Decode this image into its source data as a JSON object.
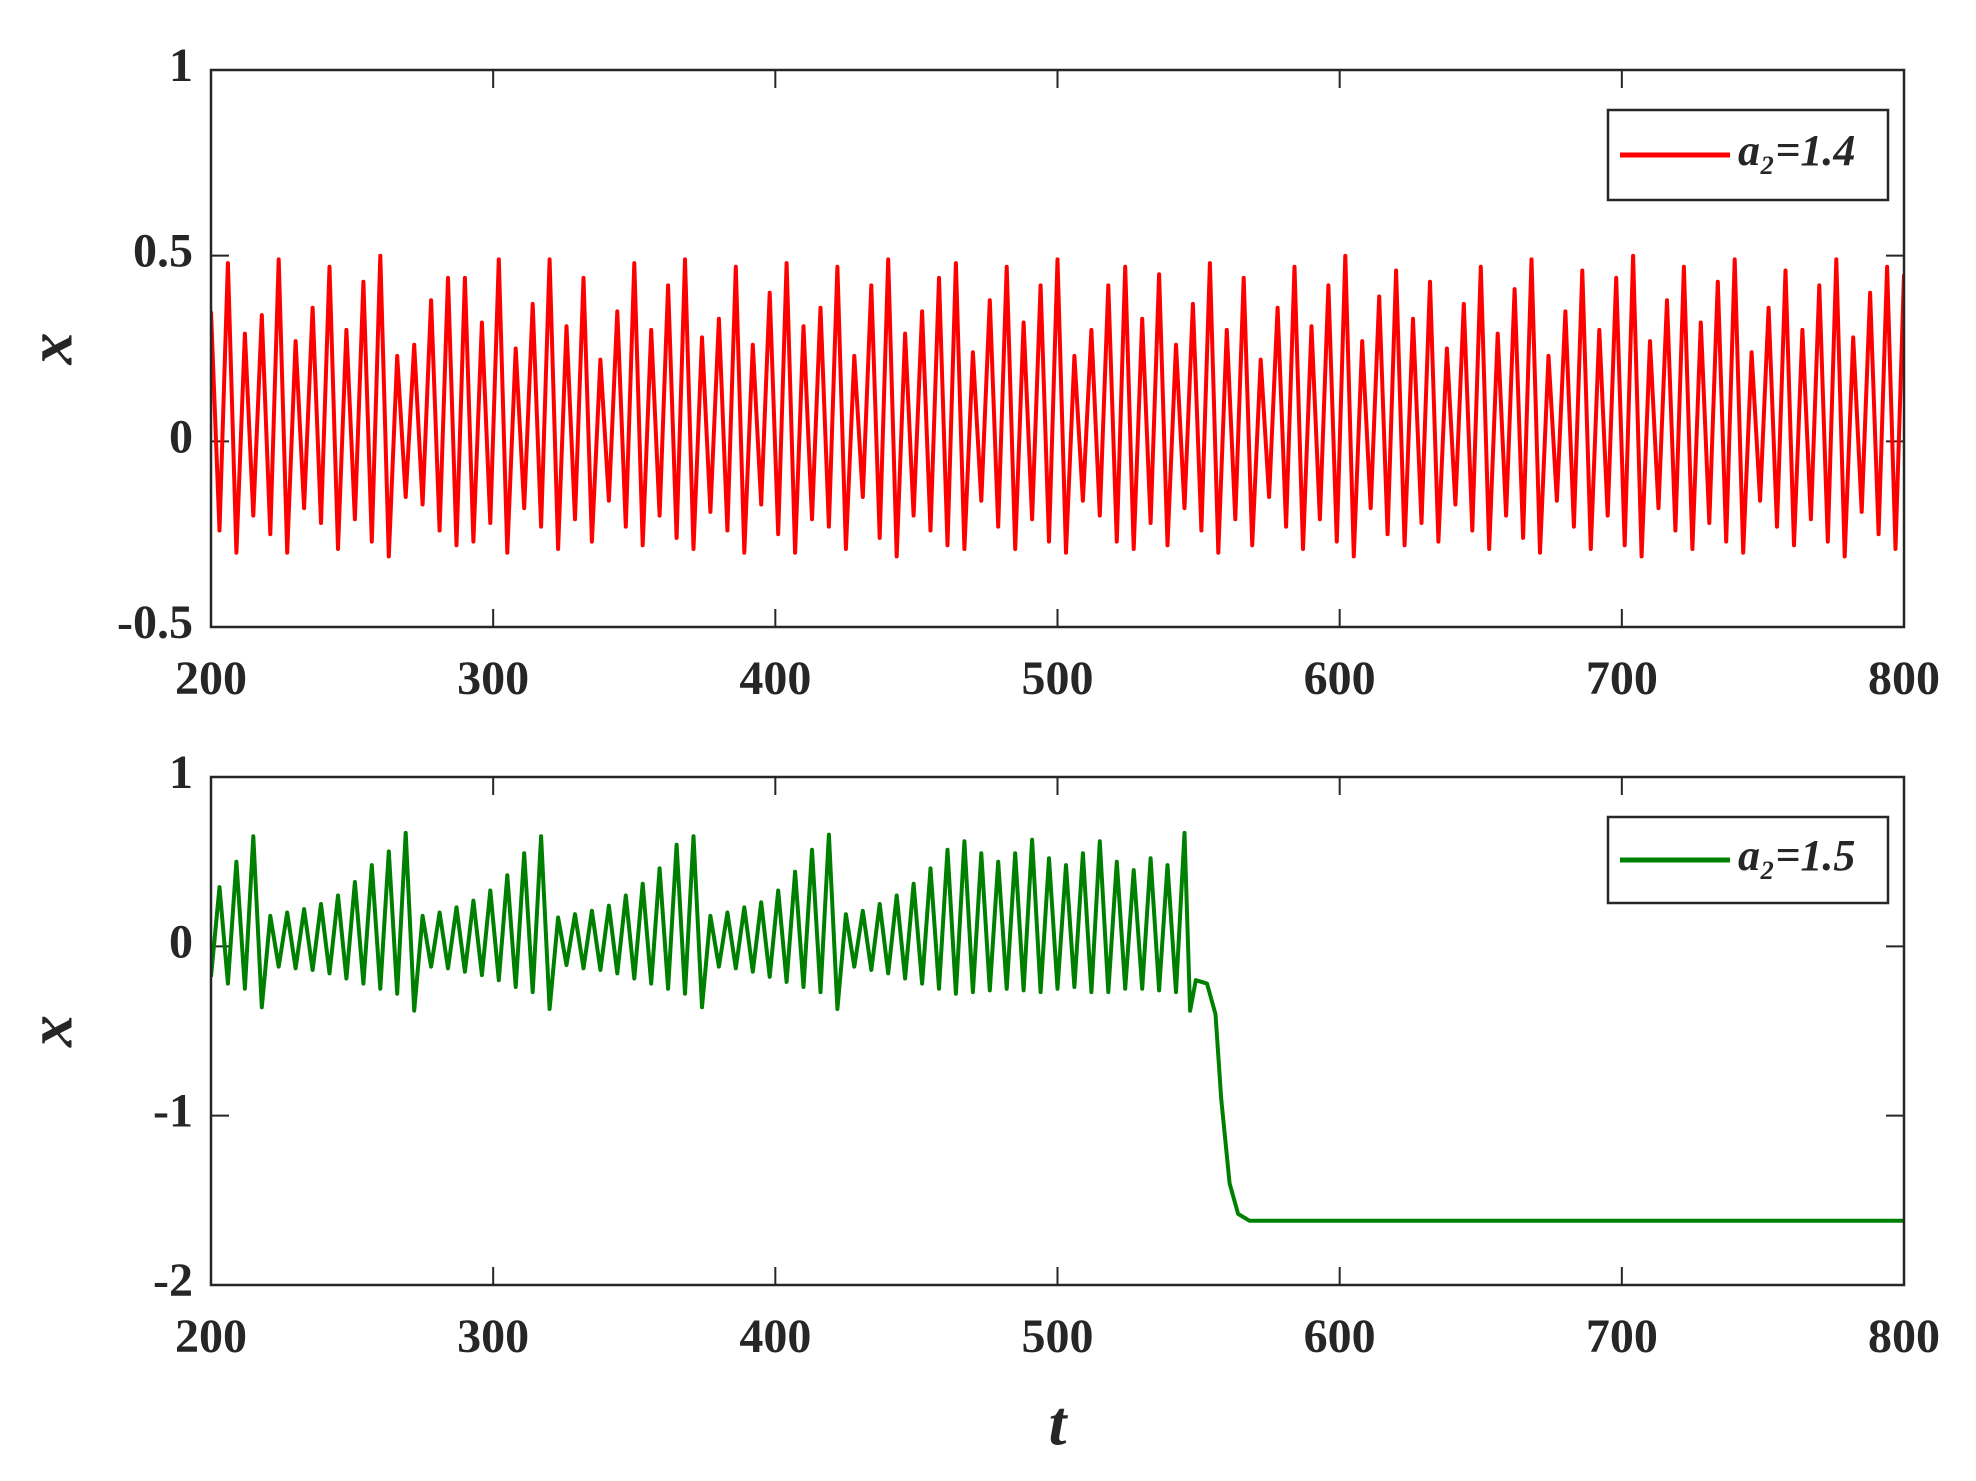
{
  "chart_data": [
    {
      "type": "line",
      "ylabel": "x",
      "x": [
        200,
        203,
        206,
        209,
        212,
        215,
        218,
        221,
        224,
        227,
        230,
        233,
        236,
        239,
        242,
        245,
        248,
        251,
        254,
        257,
        260,
        263,
        266,
        269,
        272,
        275,
        278,
        281,
        284,
        287,
        290,
        293,
        296,
        299,
        302,
        305,
        308,
        311,
        314,
        317,
        320,
        323,
        326,
        329,
        332,
        335,
        338,
        341,
        344,
        347,
        350,
        353,
        356,
        359,
        362,
        365,
        368,
        371,
        374,
        377,
        380,
        383,
        386,
        389,
        392,
        395,
        398,
        401,
        404,
        407,
        410,
        413,
        416,
        419,
        422,
        425,
        428,
        431,
        434,
        437,
        440,
        443,
        446,
        449,
        452,
        455,
        458,
        461,
        464,
        467,
        470,
        473,
        476,
        479,
        482,
        485,
        488,
        491,
        494,
        497,
        500,
        503,
        506,
        509,
        512,
        515,
        518,
        521,
        524,
        527,
        530,
        533,
        536,
        539,
        542,
        545,
        548,
        551,
        554,
        557,
        560,
        563,
        566,
        569,
        572,
        575,
        578,
        581,
        584,
        587,
        590,
        593,
        596,
        599,
        602,
        605,
        608,
        611,
        614,
        617,
        620,
        623,
        626,
        629,
        632,
        635,
        638,
        641,
        644,
        647,
        650,
        653,
        656,
        659,
        662,
        665,
        668,
        671,
        674,
        677,
        680,
        683,
        686,
        689,
        692,
        695,
        698,
        701,
        704,
        707,
        710,
        713,
        716,
        719,
        722,
        725,
        728,
        731,
        734,
        737,
        740,
        743,
        746,
        749,
        752,
        755,
        758,
        761,
        764,
        767,
        770,
        773,
        776,
        779,
        782,
        785,
        788,
        791,
        794,
        797,
        800
      ],
      "series": [
        {
          "name": "a₂=1.4",
          "color": "#ff0000",
          "values": [
            0.35,
            -0.24,
            0.48,
            -0.3,
            0.29,
            -0.2,
            0.34,
            -0.25,
            0.49,
            -0.3,
            0.27,
            -0.18,
            0.36,
            -0.22,
            0.47,
            -0.29,
            0.3,
            -0.21,
            0.43,
            -0.27,
            0.5,
            -0.31,
            0.23,
            -0.15,
            0.26,
            -0.17,
            0.38,
            -0.24,
            0.44,
            -0.28,
            0.44,
            -0.27,
            0.32,
            -0.22,
            0.49,
            -0.3,
            0.25,
            -0.18,
            0.37,
            -0.23,
            0.49,
            -0.29,
            0.31,
            -0.21,
            0.44,
            -0.27,
            0.22,
            -0.16,
            0.35,
            -0.23,
            0.48,
            -0.28,
            0.3,
            -0.2,
            0.42,
            -0.26,
            0.49,
            -0.29,
            0.28,
            -0.19,
            0.33,
            -0.24,
            0.47,
            -0.3,
            0.26,
            -0.17,
            0.4,
            -0.25,
            0.48,
            -0.3,
            0.31,
            -0.21,
            0.36,
            -0.23,
            0.47,
            -0.29,
            0.23,
            -0.15,
            0.42,
            -0.26,
            0.49,
            -0.31,
            0.29,
            -0.2,
            0.35,
            -0.24,
            0.44,
            -0.28,
            0.48,
            -0.29,
            0.24,
            -0.16,
            0.38,
            -0.23,
            0.47,
            -0.29,
            0.32,
            -0.21,
            0.42,
            -0.27,
            0.49,
            -0.3,
            0.23,
            -0.16,
            0.3,
            -0.2,
            0.42,
            -0.27,
            0.47,
            -0.29,
            0.33,
            -0.22,
            0.45,
            -0.28,
            0.26,
            -0.18,
            0.37,
            -0.24,
            0.48,
            -0.3,
            0.3,
            -0.21,
            0.44,
            -0.28,
            0.22,
            -0.15,
            0.36,
            -0.23,
            0.47,
            -0.29,
            0.31,
            -0.21,
            0.42,
            -0.27,
            0.5,
            -0.31,
            0.27,
            -0.18,
            0.39,
            -0.25,
            0.46,
            -0.28,
            0.33,
            -0.22,
            0.43,
            -0.27,
            0.25,
            -0.17,
            0.37,
            -0.24,
            0.47,
            -0.29,
            0.29,
            -0.2,
            0.41,
            -0.26,
            0.49,
            -0.3,
            0.23,
            -0.16,
            0.35,
            -0.23,
            0.46,
            -0.29,
            0.3,
            -0.2,
            0.44,
            -0.28,
            0.5,
            -0.31,
            0.27,
            -0.18,
            0.38,
            -0.24,
            0.47,
            -0.29,
            0.32,
            -0.22,
            0.43,
            -0.27,
            0.49,
            -0.3,
            0.24,
            -0.16,
            0.36,
            -0.23,
            0.46,
            -0.28,
            0.3,
            -0.21,
            0.42,
            -0.27,
            0.49,
            -0.31,
            0.28,
            -0.19,
            0.4,
            -0.25,
            0.47,
            -0.29,
            0.45
          ]
        }
      ],
      "xlim": [
        200,
        800
      ],
      "xticks": [
        200,
        300,
        400,
        500,
        600,
        700,
        800
      ],
      "ylim": [
        -0.5,
        1
      ],
      "yticks": [
        -0.5,
        0,
        0.5,
        1
      ],
      "legend": "upper right"
    },
    {
      "type": "line",
      "ylabel": "x",
      "xlabel": "t",
      "x": [
        200,
        203,
        206,
        209,
        212,
        215,
        218,
        221,
        224,
        227,
        230,
        233,
        236,
        239,
        242,
        245,
        248,
        251,
        254,
        257,
        260,
        263,
        266,
        269,
        272,
        275,
        278,
        281,
        284,
        287,
        290,
        293,
        296,
        299,
        302,
        305,
        308,
        311,
        314,
        317,
        320,
        323,
        326,
        329,
        332,
        335,
        338,
        341,
        344,
        347,
        350,
        353,
        356,
        359,
        362,
        365,
        368,
        371,
        374,
        377,
        380,
        383,
        386,
        389,
        392,
        395,
        398,
        401,
        404,
        407,
        410,
        413,
        416,
        419,
        422,
        425,
        428,
        431,
        434,
        437,
        440,
        443,
        446,
        449,
        452,
        455,
        458,
        461,
        464,
        467,
        470,
        473,
        476,
        479,
        482,
        485,
        488,
        491,
        494,
        497,
        500,
        503,
        506,
        509,
        512,
        515,
        518,
        521,
        524,
        527,
        530,
        533,
        536,
        539,
        542,
        545,
        547,
        549,
        553,
        556,
        558,
        561,
        564,
        568,
        800
      ],
      "series": [
        {
          "name": "a₂=1.5",
          "color": "#008000",
          "values": [
            -0.18,
            0.35,
            -0.22,
            0.5,
            -0.25,
            0.65,
            -0.36,
            0.18,
            -0.12,
            0.2,
            -0.13,
            0.22,
            -0.14,
            0.25,
            -0.16,
            0.3,
            -0.19,
            0.38,
            -0.22,
            0.48,
            -0.25,
            0.56,
            -0.28,
            0.67,
            -0.38,
            0.18,
            -0.12,
            0.2,
            -0.13,
            0.23,
            -0.15,
            0.27,
            -0.17,
            0.33,
            -0.2,
            0.42,
            -0.24,
            0.55,
            -0.27,
            0.65,
            -0.37,
            0.17,
            -0.11,
            0.19,
            -0.13,
            0.21,
            -0.14,
            0.24,
            -0.16,
            0.3,
            -0.19,
            0.37,
            -0.22,
            0.46,
            -0.25,
            0.6,
            -0.28,
            0.65,
            -0.36,
            0.18,
            -0.12,
            0.2,
            -0.13,
            0.23,
            -0.15,
            0.26,
            -0.18,
            0.33,
            -0.21,
            0.44,
            -0.24,
            0.57,
            -0.27,
            0.66,
            -0.37,
            0.19,
            -0.12,
            0.21,
            -0.14,
            0.25,
            -0.16,
            0.3,
            -0.19,
            0.37,
            -0.22,
            0.46,
            -0.25,
            0.57,
            -0.28,
            0.62,
            -0.27,
            0.55,
            -0.26,
            0.5,
            -0.25,
            0.55,
            -0.26,
            0.63,
            -0.27,
            0.52,
            -0.25,
            0.48,
            -0.24,
            0.55,
            -0.27,
            0.62,
            -0.27,
            0.5,
            -0.25,
            0.45,
            -0.25,
            0.52,
            -0.26,
            0.48,
            -0.27,
            0.67,
            -0.38,
            -0.2,
            -0.22,
            -0.4,
            -0.9,
            -1.4,
            -1.58,
            -1.62,
            -1.62
          ]
        }
      ],
      "xlim": [
        200,
        800
      ],
      "xticks": [
        200,
        300,
        400,
        500,
        600,
        700,
        800
      ],
      "ylim": [
        -2,
        1
      ],
      "yticks": [
        -2,
        -1,
        0,
        1
      ],
      "legend": "upper right"
    }
  ]
}
